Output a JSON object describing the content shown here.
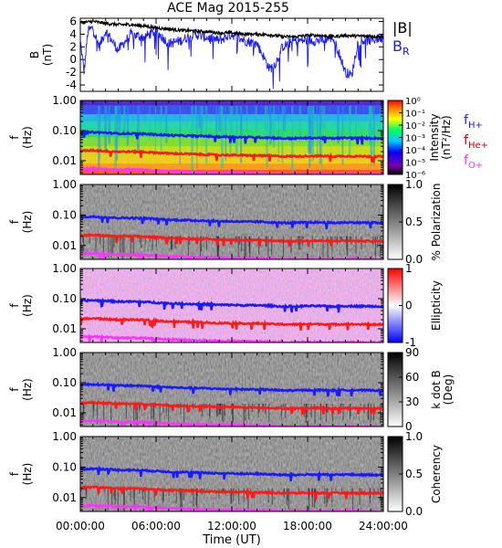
{
  "title": "ACE Mag 2015-255",
  "time_axis": {
    "label": "Time (UT)",
    "ticks": [
      "00:00:00",
      "06:00:00",
      "12:00:00",
      "18:00:00",
      "24:00:00"
    ],
    "tick_hours": [
      0,
      6,
      12,
      18,
      24
    ],
    "range_hours": [
      0,
      24
    ]
  },
  "colors": {
    "bmag": "#000000",
    "br": "#1a1aff",
    "fH": "#1a1aff",
    "fHe": "#ff1a1a",
    "fO": "#ff33ff"
  },
  "chart_data": [
    {
      "type": "line",
      "ylabel_top": "B",
      "ylabel_unit": "(nT)",
      "ylim": [
        -5,
        6.5
      ],
      "yticks": [
        6,
        4,
        2,
        0,
        -2,
        -4
      ],
      "grid": false,
      "series": [
        {
          "name": "|B|",
          "x": [
            0,
            1,
            2,
            3,
            4,
            5,
            6,
            7,
            8,
            9,
            10,
            11,
            12,
            13,
            14,
            15,
            16,
            17,
            18,
            19,
            20,
            21,
            22,
            23,
            24
          ],
          "values": [
            5.8,
            6.0,
            5.7,
            5.5,
            5.5,
            5.3,
            5.0,
            4.8,
            4.6,
            4.5,
            4.4,
            4.2,
            4.2,
            4.0,
            4.0,
            3.9,
            3.6,
            3.6,
            3.8,
            3.8,
            3.6,
            3.8,
            3.7,
            3.7,
            3.6
          ]
        },
        {
          "name": "B_R",
          "x": [
            0,
            0.3,
            0.6,
            1,
            1.5,
            2,
            3,
            4,
            5,
            6,
            7,
            8,
            9,
            10,
            11,
            12,
            13,
            14,
            14.5,
            15,
            15.5,
            16,
            17,
            18,
            19,
            20,
            20.5,
            21,
            21.5,
            22,
            23,
            24
          ],
          "values": [
            3.0,
            -2.0,
            4.5,
            5.0,
            2.0,
            4.5,
            1.5,
            4.0,
            3.5,
            4.5,
            2.5,
            3.0,
            4.0,
            3.5,
            3.0,
            4.0,
            3.0,
            2.5,
            0.5,
            -1.5,
            -0.5,
            2.0,
            3.0,
            3.0,
            3.0,
            3.5,
            1.0,
            -2.0,
            -2.5,
            3.0,
            3.0,
            3.5
          ]
        }
      ],
      "legend": [
        "|B|",
        "B",
        "R"
      ]
    },
    {
      "type": "heatmap",
      "ylabel": [
        "f",
        "(Hz)"
      ],
      "yscale": "log",
      "ylim": [
        0.0035,
        1.0
      ],
      "yticks": [
        "1.00",
        "0.10",
        "0.01"
      ],
      "colorbar": {
        "label": "Intensity",
        "unit": "(nT²/Hz)",
        "scale": "log",
        "range": [
          1e-06,
          1
        ],
        "ticks": [
          "10⁰",
          "10⁻¹",
          "10⁻²",
          "10⁻³",
          "10⁻⁴",
          "10⁻⁵",
          "10⁻⁶"
        ]
      },
      "legend": [
        {
          "base": "f",
          "sub": "H+"
        },
        {
          "base": "f",
          "sub": "He+"
        },
        {
          "base": "f",
          "sub": "O+"
        }
      ]
    },
    {
      "type": "heatmap",
      "ylabel": [
        "f",
        "(Hz)"
      ],
      "yscale": "log",
      "ylim": [
        0.0035,
        1.0
      ],
      "yticks": [
        "1.00",
        "0.10",
        "0.01"
      ],
      "colorbar": {
        "label": "% Polarization",
        "range": [
          0,
          1
        ],
        "ticks": [
          "1.0",
          "0.5",
          "0.0"
        ]
      }
    },
    {
      "type": "heatmap",
      "ylabel": [
        "f",
        "(Hz)"
      ],
      "yscale": "log",
      "ylim": [
        0.0035,
        1.0
      ],
      "yticks": [
        "1.00",
        "0.10",
        "0.01"
      ],
      "colorbar": {
        "label": "Ellipticity",
        "range": [
          -1,
          1
        ],
        "ticks": [
          "1",
          "0",
          "-1"
        ]
      }
    },
    {
      "type": "heatmap",
      "ylabel": [
        "f",
        "(Hz)"
      ],
      "yscale": "log",
      "ylim": [
        0.0035,
        1.0
      ],
      "yticks": [
        "1.00",
        "0.10",
        "0.01"
      ],
      "colorbar": {
        "label": "k dot B",
        "unit": "(Deg)",
        "range": [
          0,
          90
        ],
        "ticks": [
          "90",
          "60",
          "30",
          "0"
        ]
      }
    },
    {
      "type": "heatmap",
      "ylabel": [
        "f",
        "(Hz)"
      ],
      "yscale": "log",
      "ylim": [
        0.0035,
        1.0
      ],
      "yticks": [
        "1.00",
        "0.10",
        "0.01"
      ],
      "colorbar": {
        "label": "Coherency",
        "range": [
          0,
          1
        ],
        "ticks": [
          "1.0",
          "0.5",
          "0.0"
        ]
      }
    }
  ],
  "gyrofrequencies": {
    "x": [
      0,
      1,
      2,
      3,
      4,
      5,
      6,
      7,
      8,
      9,
      10,
      11,
      12,
      13,
      14,
      15,
      16,
      17,
      18,
      19,
      20,
      21,
      22,
      23,
      24
    ],
    "fH": [
      0.085,
      0.088,
      0.085,
      0.08,
      0.08,
      0.078,
      0.074,
      0.07,
      0.068,
      0.066,
      0.065,
      0.062,
      0.062,
      0.06,
      0.06,
      0.058,
      0.055,
      0.055,
      0.057,
      0.057,
      0.055,
      0.057,
      0.056,
      0.056,
      0.055
    ],
    "fHe": [
      0.021,
      0.022,
      0.021,
      0.02,
      0.02,
      0.0195,
      0.0185,
      0.0175,
      0.017,
      0.0165,
      0.016,
      0.0155,
      0.0155,
      0.015,
      0.015,
      0.0145,
      0.014,
      0.014,
      0.0143,
      0.0143,
      0.014,
      0.0143,
      0.014,
      0.014,
      0.0138
    ],
    "fO": [
      0.0054,
      0.0055,
      0.0053,
      0.005,
      0.005,
      0.0049,
      0.0046,
      0.0044,
      0.0043,
      0.0041,
      0.004,
      0.0039,
      0.0039,
      0.0038,
      0.0038,
      0.0037,
      0.0035,
      0.0035,
      0.0036,
      0.0036,
      0.0035,
      0.0036,
      0.0035,
      0.0035,
      0.0035
    ]
  }
}
